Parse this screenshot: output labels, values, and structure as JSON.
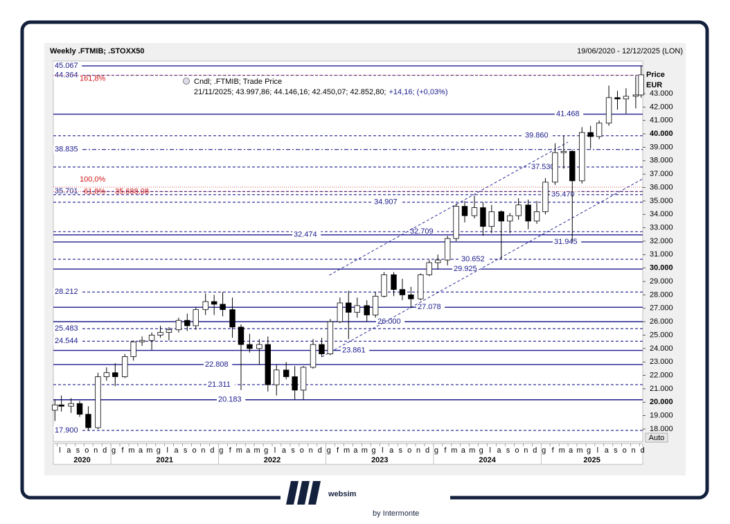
{
  "chart_data": {
    "type": "candlestick",
    "title": "Weekly .FTMIB; .STOXX50",
    "date_range": "19/06/2020 - 12/12/2025 (LON)",
    "y_axis_label": "Price",
    "currency": "EUR",
    "scale_mode": "Auto",
    "legend": {
      "name": "Cndl; .FTMIB; Trade Price",
      "ohlc": "21/11/2025; 43.997,86; 44.146,16; 42.450,07; 42.852,80;",
      "change": "+14,16; (+0,03%)"
    },
    "up_color": "#ffffff",
    "down_color": "#000000",
    "level_color": "#1a1a8c",
    "fib_color": "#d01818",
    "xlim": [
      2020.465,
      2025.945
    ],
    "ylim": [
      17070,
      45430
    ],
    "x": [
      2020.48,
      2020.54,
      2020.63,
      2020.71,
      2020.79,
      2020.88,
      2020.96,
      2021.04,
      2021.13,
      2021.21,
      2021.29,
      2021.38,
      2021.46,
      2021.54,
      2021.63,
      2021.71,
      2021.79,
      2021.88,
      2021.96,
      2022.04,
      2022.13,
      2022.21,
      2022.29,
      2022.38,
      2022.46,
      2022.54,
      2022.63,
      2022.71,
      2022.79,
      2022.88,
      2022.96,
      2023.04,
      2023.13,
      2023.21,
      2023.29,
      2023.38,
      2023.46,
      2023.54,
      2023.63,
      2023.71,
      2023.79,
      2023.88,
      2023.96,
      2024.04,
      2024.13,
      2024.21,
      2024.29,
      2024.38,
      2024.46,
      2024.54,
      2024.63,
      2024.71,
      2024.79,
      2024.88,
      2024.96,
      2025.04,
      2025.13,
      2025.21,
      2025.29,
      2025.38,
      2025.46,
      2025.54,
      2025.63,
      2025.71,
      2025.79,
      2025.88,
      2025.93
    ],
    "open": [
      19400,
      19800,
      19700,
      19900,
      19100,
      18100,
      21900,
      22200,
      21900,
      23400,
      24500,
      24600,
      25000,
      25200,
      25400,
      26100,
      25700,
      26900,
      27500,
      27300,
      26900,
      25600,
      24300,
      24000,
      24300,
      21300,
      22400,
      21900,
      20900,
      22600,
      24300,
      23600,
      26000,
      27400,
      26700,
      27200,
      26500,
      27900,
      29500,
      28400,
      28000,
      27700,
      29500,
      30400,
      30600,
      32200,
      34600,
      33900,
      34500,
      33100,
      34200,
      33500,
      33900,
      34700,
      33500,
      34200,
      36400,
      38600,
      38700,
      36500,
      40100,
      39800,
      40800,
      42700,
      42600,
      42800,
      42900
    ],
    "high": [
      20200,
      20500,
      20300,
      20100,
      19700,
      22200,
      22600,
      22900,
      23600,
      24600,
      24900,
      25200,
      25700,
      25600,
      26300,
      26600,
      27100,
      28100,
      28000,
      28200,
      27800,
      25800,
      25100,
      24700,
      24900,
      22800,
      23000,
      22700,
      22700,
      24700,
      24800,
      26200,
      27800,
      28300,
      27800,
      27600,
      28200,
      29700,
      29700,
      29200,
      28600,
      29600,
      30600,
      31000,
      32400,
      34800,
      35000,
      35400,
      34900,
      34700,
      34300,
      34100,
      35200,
      35100,
      35000,
      36700,
      39300,
      39860,
      38800,
      40500,
      40600,
      41000,
      43600,
      43200,
      43400,
      44300,
      45067
    ],
    "low": [
      18600,
      19300,
      19200,
      18900,
      17900,
      18000,
      21600,
      21200,
      21800,
      23100,
      24200,
      23900,
      24800,
      24600,
      25200,
      25300,
      25400,
      26500,
      26500,
      26400,
      24800,
      20900,
      23700,
      22800,
      20800,
      20500,
      21700,
      20200,
      20200,
      22500,
      23400,
      23500,
      25900,
      24700,
      26300,
      26000,
      26300,
      27800,
      27900,
      27600,
      27000,
      27600,
      29400,
      29900,
      30200,
      32000,
      33400,
      33700,
      32400,
      32600,
      30652,
      32600,
      33600,
      32900,
      33300,
      34000,
      36200,
      37400,
      31945,
      36300,
      38900,
      39600,
      40600,
      41800,
      41500,
      41900,
      42700
    ],
    "close": [
      19800,
      19700,
      19900,
      19100,
      18100,
      21900,
      22200,
      21900,
      23400,
      24500,
      24600,
      25000,
      25200,
      25400,
      26100,
      25700,
      26900,
      27500,
      27300,
      26900,
      25600,
      24300,
      24000,
      24300,
      21300,
      22400,
      21900,
      20900,
      22600,
      24300,
      23600,
      26000,
      27400,
      26700,
      27200,
      26500,
      27900,
      29500,
      28400,
      28000,
      27700,
      29500,
      30400,
      30600,
      32200,
      34600,
      33900,
      34500,
      33100,
      34200,
      33500,
      33900,
      34700,
      33500,
      34200,
      36400,
      38600,
      38700,
      36500,
      40100,
      39800,
      40800,
      42700,
      42600,
      42800,
      42900,
      44400
    ],
    "yticks": [
      {
        "value": 18000,
        "label": "18.000"
      },
      {
        "value": 19000,
        "label": "19.000"
      },
      {
        "value": 20000,
        "label": "20.000"
      },
      {
        "value": 21000,
        "label": "21.000"
      },
      {
        "value": 22000,
        "label": "22.000"
      },
      {
        "value": 23000,
        "label": "23.000"
      },
      {
        "value": 24000,
        "label": "24.000"
      },
      {
        "value": 25000,
        "label": "25.000"
      },
      {
        "value": 26000,
        "label": "26.000"
      },
      {
        "value": 27000,
        "label": "27.000"
      },
      {
        "value": 28000,
        "label": "28.000"
      },
      {
        "value": 29000,
        "label": "29.000"
      },
      {
        "value": 30000,
        "label": "30.000"
      },
      {
        "value": 31000,
        "label": "31.000"
      },
      {
        "value": 32000,
        "label": "32.000"
      },
      {
        "value": 33000,
        "label": "33.000"
      },
      {
        "value": 34000,
        "label": "34.000"
      },
      {
        "value": 35000,
        "label": "35.000"
      },
      {
        "value": 36000,
        "label": "36.000"
      },
      {
        "value": 37000,
        "label": "37.000"
      },
      {
        "value": 38000,
        "label": "38.000"
      },
      {
        "value": 39000,
        "label": "39.000"
      },
      {
        "value": 40000,
        "label": "40.000"
      },
      {
        "value": 41000,
        "label": "41.000"
      },
      {
        "value": 42000,
        "label": "42.000"
      },
      {
        "value": 43000,
        "label": "43.000"
      }
    ],
    "xticks": [
      {
        "value": 2020.5,
        "label": "l"
      },
      {
        "value": 2020.583,
        "label": "a"
      },
      {
        "value": 2020.667,
        "label": "s"
      },
      {
        "value": 2020.75,
        "label": "o"
      },
      {
        "value": 2020.833,
        "label": "n"
      },
      {
        "value": 2020.917,
        "label": "d"
      },
      {
        "value": 2021.0,
        "label": "g"
      },
      {
        "value": 2021.083,
        "label": "f"
      },
      {
        "value": 2021.167,
        "label": "m"
      },
      {
        "value": 2021.25,
        "label": "a"
      },
      {
        "value": 2021.333,
        "label": "m"
      },
      {
        "value": 2021.417,
        "label": "g"
      },
      {
        "value": 2021.5,
        "label": "l"
      },
      {
        "value": 2021.583,
        "label": "a"
      },
      {
        "value": 2021.667,
        "label": "s"
      },
      {
        "value": 2021.75,
        "label": "o"
      },
      {
        "value": 2021.833,
        "label": "n"
      },
      {
        "value": 2021.917,
        "label": "d"
      },
      {
        "value": 2022.0,
        "label": "g"
      },
      {
        "value": 2022.083,
        "label": "f"
      },
      {
        "value": 2022.167,
        "label": "m"
      },
      {
        "value": 2022.25,
        "label": "a"
      },
      {
        "value": 2022.333,
        "label": "m"
      },
      {
        "value": 2022.417,
        "label": "g"
      },
      {
        "value": 2022.5,
        "label": "l"
      },
      {
        "value": 2022.583,
        "label": "a"
      },
      {
        "value": 2022.667,
        "label": "s"
      },
      {
        "value": 2022.75,
        "label": "o"
      },
      {
        "value": 2022.833,
        "label": "n"
      },
      {
        "value": 2022.917,
        "label": "d"
      },
      {
        "value": 2023.0,
        "label": "g"
      },
      {
        "value": 2023.083,
        "label": "f"
      },
      {
        "value": 2023.167,
        "label": "m"
      },
      {
        "value": 2023.25,
        "label": "a"
      },
      {
        "value": 2023.333,
        "label": "m"
      },
      {
        "value": 2023.417,
        "label": "g"
      },
      {
        "value": 2023.5,
        "label": "l"
      },
      {
        "value": 2023.583,
        "label": "a"
      },
      {
        "value": 2023.667,
        "label": "s"
      },
      {
        "value": 2023.75,
        "label": "o"
      },
      {
        "value": 2023.833,
        "label": "n"
      },
      {
        "value": 2023.917,
        "label": "d"
      },
      {
        "value": 2024.0,
        "label": "g"
      },
      {
        "value": 2024.083,
        "label": "f"
      },
      {
        "value": 2024.167,
        "label": "m"
      },
      {
        "value": 2024.25,
        "label": "a"
      },
      {
        "value": 2024.333,
        "label": "m"
      },
      {
        "value": 2024.417,
        "label": "g"
      },
      {
        "value": 2024.5,
        "label": "l"
      },
      {
        "value": 2024.583,
        "label": "a"
      },
      {
        "value": 2024.667,
        "label": "s"
      },
      {
        "value": 2024.75,
        "label": "o"
      },
      {
        "value": 2024.833,
        "label": "n"
      },
      {
        "value": 2024.917,
        "label": "d"
      },
      {
        "value": 2025.0,
        "label": "g"
      },
      {
        "value": 2025.083,
        "label": "f"
      },
      {
        "value": 2025.167,
        "label": "m"
      },
      {
        "value": 2025.25,
        "label": "a"
      },
      {
        "value": 2025.333,
        "label": "m"
      },
      {
        "value": 2025.417,
        "label": "g"
      },
      {
        "value": 2025.5,
        "label": "l"
      },
      {
        "value": 2025.583,
        "label": "a"
      },
      {
        "value": 2025.667,
        "label": "s"
      },
      {
        "value": 2025.75,
        "label": "o"
      },
      {
        "value": 2025.833,
        "label": "n"
      },
      {
        "value": 2025.917,
        "label": "d"
      }
    ],
    "years": [
      2020,
      2021,
      2022,
      2023,
      2024,
      2025
    ],
    "levels": [
      {
        "value": 45067,
        "label": "45.067",
        "style": "solid"
      },
      {
        "value": 44364,
        "label": "44.364",
        "style": "dashed"
      },
      {
        "value": 41468,
        "label": "41.468",
        "style": "solid"
      },
      {
        "value": 39860,
        "label": "39.860",
        "style": "dashed"
      },
      {
        "value": 38835,
        "label": "38.835",
        "style": "dashdot"
      },
      {
        "value": 37530,
        "label": "37.530",
        "style": "dashed"
      },
      {
        "value": 35701,
        "label": "35.701",
        "style": "dashed"
      },
      {
        "value": 35470,
        "label": "35.470",
        "style": "dashed"
      },
      {
        "value": 34907,
        "label": "34.907",
        "style": "dashed"
      },
      {
        "value": 32709,
        "label": "32.709",
        "style": "dashed"
      },
      {
        "value": 32474,
        "label": "32.474",
        "style": "solid"
      },
      {
        "value": 31945,
        "label": "31.945",
        "style": "solid"
      },
      {
        "value": 30652,
        "label": "30.652",
        "style": "dashed"
      },
      {
        "value": 29925,
        "label": "29.925",
        "style": "solid"
      },
      {
        "value": 28212,
        "label": "28.212",
        "style": "dashed"
      },
      {
        "value": 27078,
        "label": "27.078",
        "style": "solid"
      },
      {
        "value": 26000,
        "label": "26.000",
        "style": "solid"
      },
      {
        "value": 25483,
        "label": "25.483",
        "style": "dashed"
      },
      {
        "value": 24544,
        "label": "24.544",
        "style": "dashed"
      },
      {
        "value": 23861,
        "label": "23.861",
        "style": "solid"
      },
      {
        "value": 22808,
        "label": "22.808",
        "style": "solid"
      },
      {
        "value": 21311,
        "label": "21.311",
        "style": "dashed"
      },
      {
        "value": 20183,
        "label": "20.183",
        "style": "solid"
      },
      {
        "value": 17900,
        "label": "17.900",
        "style": "dashed"
      }
    ],
    "fib": [
      {
        "label": "161,8%",
        "value": 44364
      },
      {
        "label": "100,0%",
        "value": 36030
      },
      {
        "label": "61,8%",
        "value": 35688,
        "price_label": "35.688,08"
      }
    ],
    "trendlines": [
      {
        "x": [
          2023.03,
          2025.25
        ],
        "y": [
          29468,
          39385
        ]
      },
      {
        "x": [
          2022.96,
          2025.945
        ],
        "y": [
          23373,
          36648
        ]
      }
    ]
  },
  "footer": {
    "brand": "websim",
    "tagline": "by Intermonte"
  }
}
